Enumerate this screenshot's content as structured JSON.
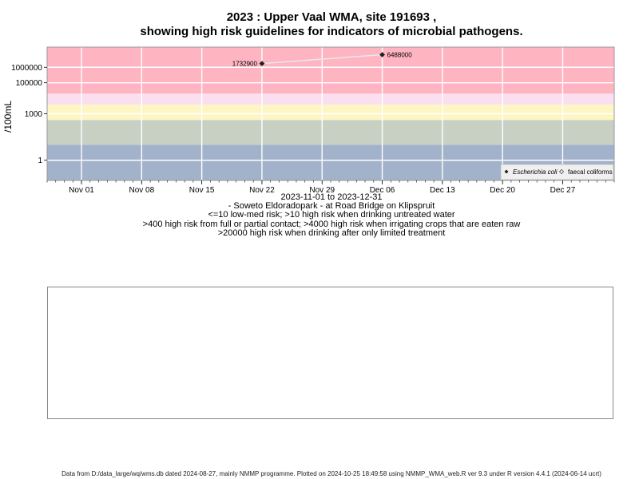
{
  "title_line1": "2023 : Upper Vaal WMA, site 191693 ,",
  "title_line2": "showing high risk guidelines for indicators of microbial pathogens.",
  "chart_data": {
    "type": "scatter",
    "y_scale": "log",
    "ylabel": "/100mL",
    "y_ticks": [
      {
        "value": 1,
        "label": "1"
      },
      {
        "value": 1000,
        "label": "1000"
      },
      {
        "value": 100000,
        "label": "100000"
      },
      {
        "value": 1000000,
        "label": "1000000"
      }
    ],
    "x_start": "2023-10-28",
    "x_end": "2024-01-02",
    "x_ticks": [
      {
        "date": "2023-11-01",
        "label": "Nov 01"
      },
      {
        "date": "2023-11-08",
        "label": "Nov 08"
      },
      {
        "date": "2023-11-15",
        "label": "Nov 15"
      },
      {
        "date": "2023-11-22",
        "label": "Nov 22"
      },
      {
        "date": "2023-11-29",
        "label": "Nov 29"
      },
      {
        "date": "2023-12-06",
        "label": "Dec 06"
      },
      {
        "date": "2023-12-13",
        "label": "Dec 13"
      },
      {
        "date": "2023-12-20",
        "label": "Dec 20"
      },
      {
        "date": "2023-12-27",
        "label": "Dec 27"
      }
    ],
    "bands": [
      {
        "from": 0.05,
        "to": 10,
        "color": "#a2b2ca"
      },
      {
        "from": 10,
        "to": 400,
        "color": "#c8d0c4"
      },
      {
        "from": 400,
        "to": 4000,
        "color": "#fdf6c4"
      },
      {
        "from": 4000,
        "to": 20000,
        "color": "#fbdff0"
      },
      {
        "from": 20000,
        "to": 20000000,
        "color": "#ffb4c2"
      }
    ],
    "series": [
      {
        "name": "Escherichia coli",
        "marker": "diamond",
        "color": "#222222",
        "line_color": "#e8e8e8",
        "points": [
          {
            "date": "2023-11-22",
            "value": 1732900,
            "label": "1732900",
            "label_side": "left"
          },
          {
            "date": "2023-12-06",
            "value": 6488000,
            "label": "6488000",
            "label_side": "right"
          }
        ]
      },
      {
        "name": "faecal coliforms",
        "marker": "open-diamond",
        "color": "#444444",
        "points": []
      }
    ],
    "legend_position": "bottom-right",
    "grid": true
  },
  "captions": [
    "2023-11-01 to 2023-12-31",
    "- Soweto Eldoradopark - at Road Bridge on Klipspruit",
    "<=10 low-med risk; >10 high risk when drinking untreated water",
    ">400 high risk from full or partial contact; >4000 high risk when irrigating crops that are eaten raw",
    ">20000 high risk when drinking after only limited treatment"
  ],
  "footer": "Data from D:/data_large/wq/wms.db dated 2024-08-27, mainly NMMP programme. Plotted on 2024-10-25 18:49:58 using NMMP_WMA_web.R ver 9.3 under R version 4.4.1 (2024-06-14 ucrt)"
}
